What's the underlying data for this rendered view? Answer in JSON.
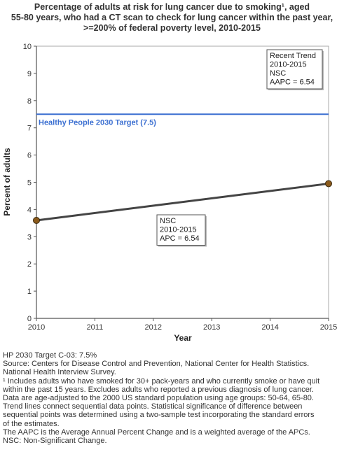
{
  "title_lines": [
    "Percentage of adults at risk for lung cancer due to smoking¹, aged",
    "55-80 years, who had a CT scan to check for lung cancer within the past year,",
    ">=200% of federal poverty level,  2010-2015"
  ],
  "colors": {
    "trend_line": "#444444",
    "point_fill": "#8B5A1B",
    "target_line": "#3b6fd1",
    "axis": "#555555",
    "plot_border": "#aaaaaa"
  },
  "chart_data": {
    "type": "line",
    "xlabel": "Year",
    "ylabel": "Percent of adults",
    "xlim": [
      2010,
      2015
    ],
    "ylim": [
      0,
      10
    ],
    "x_ticks": [
      "2010",
      "2011",
      "2012",
      "2013",
      "2014",
      "2015"
    ],
    "y_ticks": [
      "0",
      "1",
      "2",
      "3",
      "4",
      "5",
      "6",
      "7",
      "8",
      "9",
      "10"
    ],
    "grid": false,
    "series": [
      {
        "x": [
          2010,
          2015
        ],
        "y": [
          3.6,
          4.95
        ]
      }
    ],
    "target": {
      "value": 7.5,
      "label": "Healthy People 2030 Target (7.5)"
    },
    "segment_box_lines": [
      "NSC",
      "2010-2015",
      "APC =  6.54"
    ],
    "trend_box_lines": [
      "Recent Trend",
      "2010-2015",
      "NSC",
      "AAPC =  6.54"
    ]
  },
  "footnotes": [
    "HP 2030 Target C-03: 7.5%",
    "Source: Centers for Disease Control and Prevention, National Center for Health Statistics.",
    "National Health Interview Survey.",
    "¹ Includes adults who have smoked for 30+ pack-years and who currently smoke or have quit",
    "within the past 15 years. Excludes adults who reported a previous diagnosis of lung cancer.",
    "Data are age-adjusted to the 2000 US standard population using age groups: 50-64, 65-80.",
    "Trend lines connect sequential data points. Statistical significance of difference between",
    "sequential points was determined using a two-sample test incorporating the standard errors",
    "of the estimates.",
    "The AAPC is the Average Annual Percent Change and is a weighted average of the APCs.",
    "NSC: Non-Significant Change."
  ]
}
